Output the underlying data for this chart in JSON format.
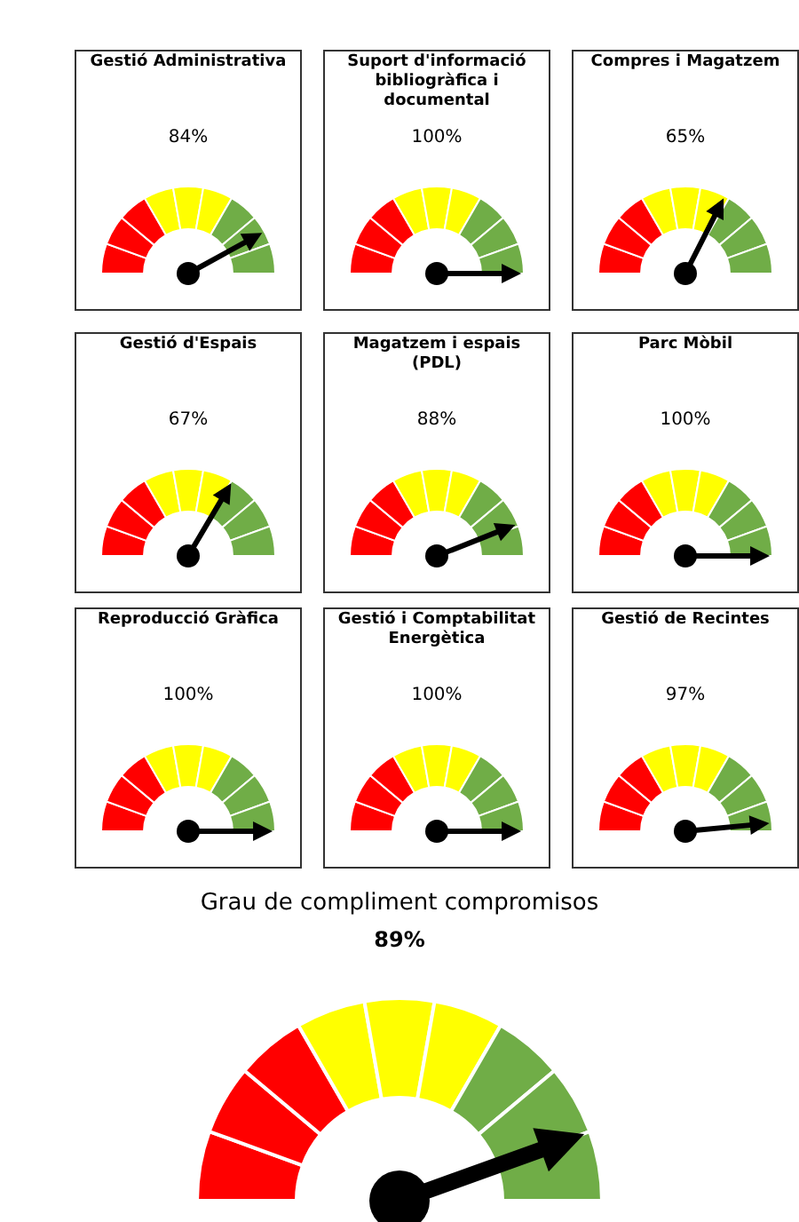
{
  "chart_data": [
    {
      "type": "other",
      "title": "Gestió Administrativa",
      "values": [
        84
      ],
      "value_labels": [
        "84%"
      ]
    },
    {
      "type": "other",
      "title": "Suport d'informació bibliogràfica i documental",
      "values": [
        100
      ],
      "value_labels": [
        "100%"
      ]
    },
    {
      "type": "other",
      "title": "Compres i Magatzem",
      "values": [
        65
      ],
      "value_labels": [
        "65%"
      ]
    },
    {
      "type": "other",
      "title": "Gestió d'Espais",
      "values": [
        67
      ],
      "value_labels": [
        "67%"
      ]
    },
    {
      "type": "other",
      "title": "Magatzem i espais (PDL)",
      "values": [
        88
      ],
      "value_labels": [
        "88%"
      ]
    },
    {
      "type": "other",
      "title": "Parc Mòbil",
      "values": [
        100
      ],
      "value_labels": [
        "100%"
      ]
    },
    {
      "type": "other",
      "title": "Reproducció Gràfica",
      "values": [
        100
      ],
      "value_labels": [
        "100%"
      ]
    },
    {
      "type": "other",
      "title": "Gestió i Comptabilitat Energètica",
      "values": [
        100
      ],
      "value_labels": [
        "100%"
      ]
    },
    {
      "type": "other",
      "title": "Gestió de Recintes",
      "values": [
        97
      ],
      "value_labels": [
        "97%"
      ]
    },
    {
      "type": "other",
      "title": "Grau de compliment compromisos",
      "values": [
        89
      ],
      "value_labels": [
        "89%"
      ]
    }
  ]
}
